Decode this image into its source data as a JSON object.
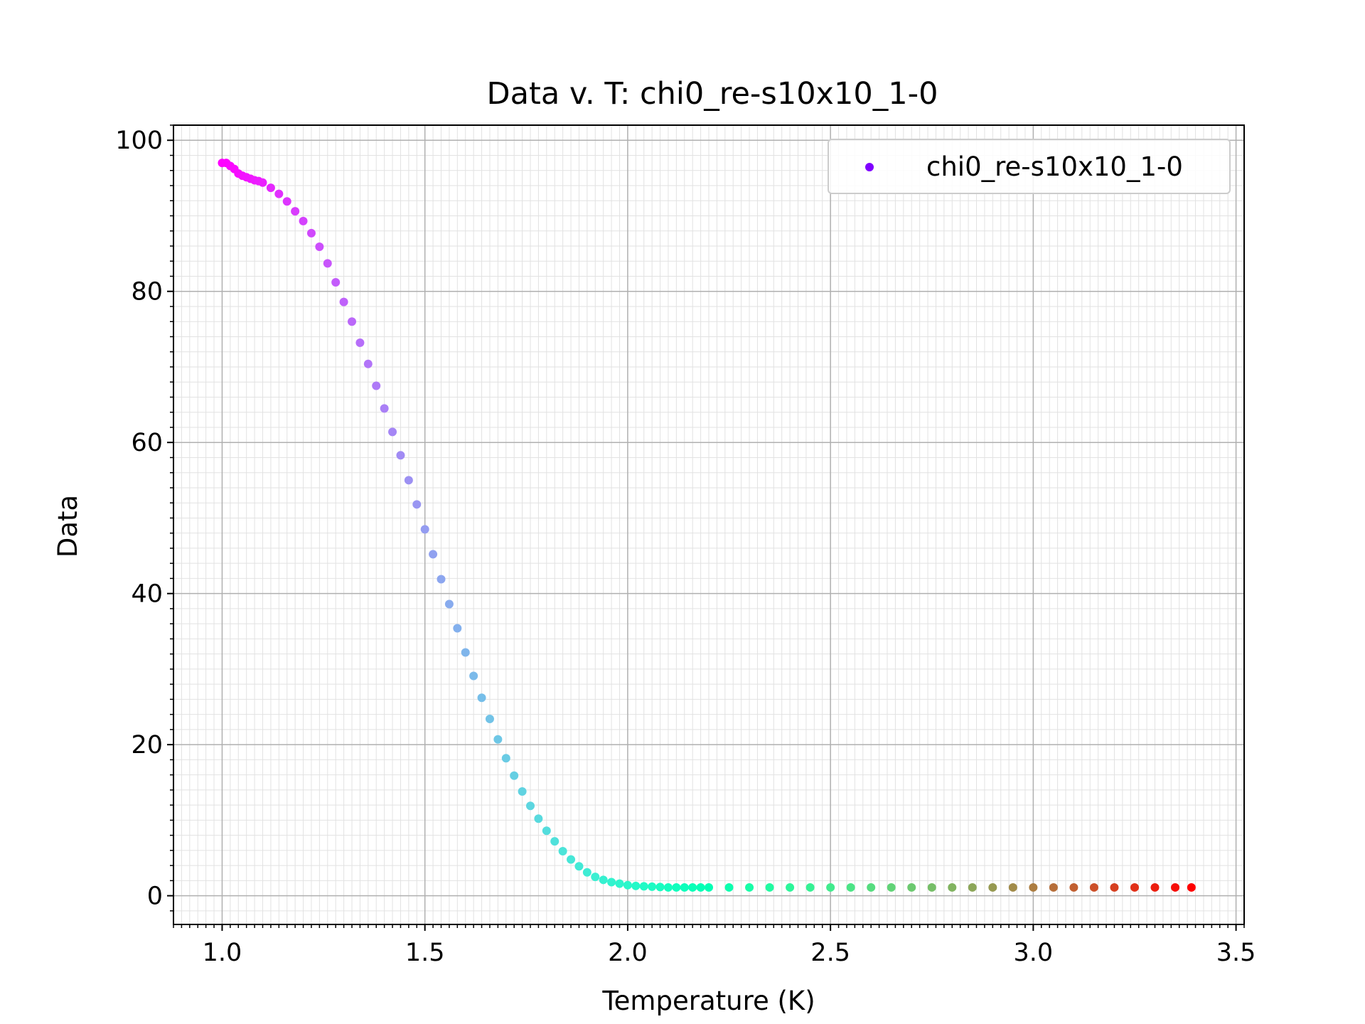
{
  "chart_data": {
    "type": "scatter",
    "title": "Data v. T: chi0_re-s10x10_1-0",
    "xlabel": "Temperature (K)",
    "ylabel": "Data",
    "xlim": [
      0.88,
      3.52
    ],
    "ylim": [
      -3.8,
      102
    ],
    "xticks": [
      "1.0",
      "1.5",
      "2.0",
      "2.5",
      "3.0",
      "3.5"
    ],
    "yticks": [
      "0",
      "20",
      "40",
      "60",
      "80",
      "100"
    ],
    "grid": "major and minor",
    "legend_position": "top-right",
    "colormap": "rainbow (purple to red)",
    "series": [
      {
        "name": "chi0_re-s10x10_1-0",
        "legend_color": "#8000ff",
        "x": [
          1.0,
          1.01,
          1.02,
          1.03,
          1.04,
          1.05,
          1.06,
          1.07,
          1.08,
          1.09,
          1.1,
          1.12,
          1.14,
          1.16,
          1.18,
          1.2,
          1.22,
          1.24,
          1.26,
          1.28,
          1.3,
          1.32,
          1.34,
          1.36,
          1.38,
          1.4,
          1.42,
          1.44,
          1.46,
          1.48,
          1.5,
          1.52,
          1.54,
          1.56,
          1.58,
          1.6,
          1.62,
          1.64,
          1.66,
          1.68,
          1.7,
          1.72,
          1.74,
          1.76,
          1.78,
          1.8,
          1.82,
          1.84,
          1.86,
          1.88,
          1.9,
          1.92,
          1.94,
          1.96,
          1.98,
          2.0,
          2.02,
          2.04,
          2.06,
          2.08,
          2.1,
          2.12,
          2.14,
          2.16,
          2.18,
          2.2,
          2.25,
          2.3,
          2.35,
          2.4,
          2.45,
          2.5,
          2.55,
          2.6,
          2.65,
          2.7,
          2.75,
          2.8,
          2.85,
          2.9,
          2.95,
          3.0,
          3.05,
          3.1,
          3.15,
          3.2,
          3.25,
          3.3,
          3.35,
          3.39
        ],
        "y": [
          97.0,
          97.0,
          96.6,
          96.2,
          95.6,
          95.3,
          95.1,
          94.9,
          94.7,
          94.6,
          94.4,
          93.7,
          92.9,
          91.9,
          90.6,
          89.3,
          87.7,
          85.9,
          83.7,
          81.2,
          78.6,
          76.0,
          73.2,
          70.4,
          67.5,
          64.5,
          61.4,
          58.3,
          55.0,
          51.8,
          48.5,
          45.2,
          41.9,
          38.6,
          35.4,
          32.2,
          29.1,
          26.2,
          23.4,
          20.7,
          18.2,
          15.9,
          13.8,
          11.9,
          10.2,
          8.6,
          7.2,
          5.9,
          4.8,
          3.9,
          3.1,
          2.5,
          2.1,
          1.8,
          1.6,
          1.4,
          1.3,
          1.25,
          1.2,
          1.15,
          1.1,
          1.1,
          1.1,
          1.1,
          1.1,
          1.1,
          1.1,
          1.1,
          1.1,
          1.1,
          1.1,
          1.1,
          1.1,
          1.1,
          1.1,
          1.1,
          1.1,
          1.1,
          1.1,
          1.1,
          1.1,
          1.1,
          1.1,
          1.1,
          1.1,
          1.1,
          1.1,
          1.1,
          1.1,
          1.1
        ]
      }
    ]
  }
}
